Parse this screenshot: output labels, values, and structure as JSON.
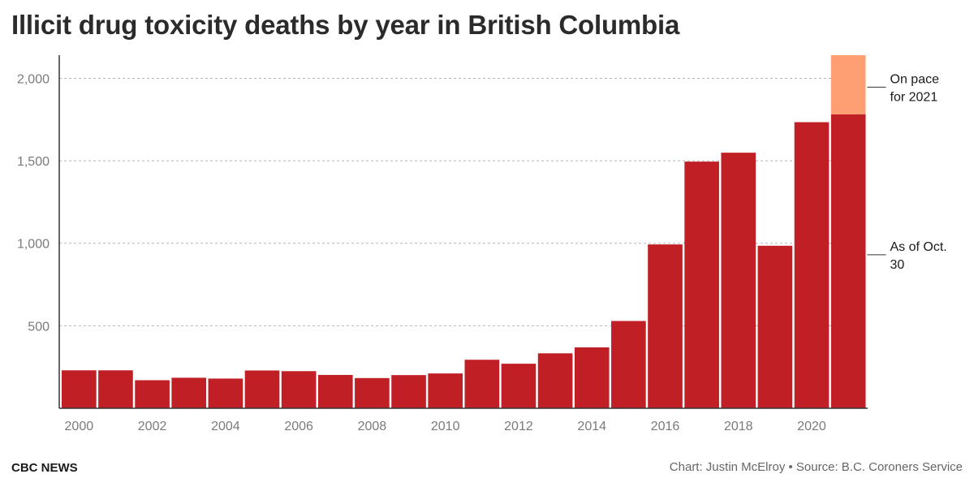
{
  "title": "Illicit drug toxicity deaths by year in British Columbia",
  "footer": {
    "brand": "CBC NEWS",
    "credit": "Chart: Justin McElroy • Source: B.C. Coroners Service"
  },
  "colors": {
    "bar": "#c01f25",
    "projection": "#fd9f72",
    "grid": "#b5b5b5",
    "axis": "#333333",
    "tick_text": "#7a7a7a"
  },
  "chart_data": {
    "type": "bar",
    "stacked": true,
    "title": "Illicit drug toxicity deaths by year in British Columbia",
    "xlabel": "",
    "ylabel": "",
    "categories": [
      "2000",
      "2001",
      "2002",
      "2003",
      "2004",
      "2005",
      "2006",
      "2007",
      "2008",
      "2009",
      "2010",
      "2011",
      "2012",
      "2013",
      "2014",
      "2015",
      "2016",
      "2017",
      "2018",
      "2019",
      "2020",
      "2021"
    ],
    "series": [
      {
        "values": [
          230,
          230,
          170,
          185,
          180,
          229,
          225,
          202,
          183,
          201,
          211,
          294,
          270,
          333,
          369,
          529,
          993,
          1495,
          1549,
          985,
          1734,
          1782
        ]
      },
      {
        "values": [
          0,
          0,
          0,
          0,
          0,
          0,
          0,
          0,
          0,
          0,
          0,
          0,
          0,
          0,
          0,
          0,
          0,
          0,
          0,
          0,
          0,
          358
        ]
      }
    ],
    "ylim": [
      0,
      2140
    ],
    "yticks": [
      500,
      1000,
      1500,
      2000
    ],
    "ytick_labels": [
      "500",
      "1,000",
      "1,500",
      "2,000"
    ],
    "xtick_labels": [
      "2000",
      "2002",
      "2004",
      "2006",
      "2008",
      "2010",
      "2012",
      "2014",
      "2016",
      "2018",
      "2020"
    ],
    "grid": true,
    "annotations": [
      {
        "text_lines": [
          "On pace",
          "for 2021"
        ],
        "target": "2021 projection"
      },
      {
        "text_lines": [
          "As of Oct.",
          "30"
        ],
        "target": "2021 actual"
      }
    ]
  }
}
